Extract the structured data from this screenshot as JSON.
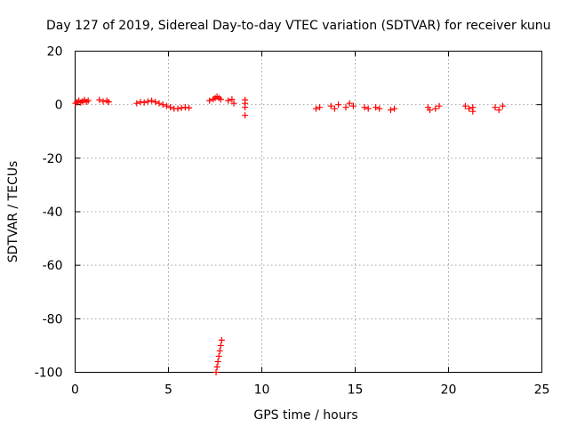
{
  "chart_data": {
    "type": "scatter",
    "title": "Day 127 of 2019, Sidereal Day-to-day VTEC variation (SDTVAR) for receiver kunu",
    "xlabel": "GPS time / hours",
    "ylabel": "SDTVAR / TECUs",
    "xlim": [
      0,
      25
    ],
    "ylim": [
      -100,
      20
    ],
    "xticks": [
      0,
      5,
      10,
      15,
      20,
      25
    ],
    "xtick_labels": [
      "0",
      "5",
      "10",
      "15",
      "20",
      "25"
    ],
    "yticks": [
      20,
      0,
      -20,
      -40,
      -60,
      -80,
      -100
    ],
    "ytick_labels": [
      "20",
      "0",
      "-20",
      "-40",
      "-60",
      "-80",
      "-100"
    ],
    "grid": true,
    "marker": "+",
    "color": "#ff0000",
    "series": [
      {
        "name": "SDTVAR",
        "points": [
          [
            0.02,
            0.5
          ],
          [
            0.1,
            1.0
          ],
          [
            0.2,
            1.5
          ],
          [
            0.3,
            0.8
          ],
          [
            0.4,
            1.2
          ],
          [
            0.5,
            1.8
          ],
          [
            0.6,
            1.0
          ],
          [
            0.7,
            1.5
          ],
          [
            1.3,
            1.8
          ],
          [
            1.5,
            1.2
          ],
          [
            1.7,
            1.5
          ],
          [
            1.8,
            1.0
          ],
          [
            3.3,
            0.5
          ],
          [
            3.5,
            1.0
          ],
          [
            3.7,
            0.8
          ],
          [
            3.9,
            1.2
          ],
          [
            4.1,
            1.5
          ],
          [
            4.3,
            1.0
          ],
          [
            4.5,
            0.5
          ],
          [
            4.7,
            0.0
          ],
          [
            4.9,
            -0.5
          ],
          [
            5.1,
            -1.0
          ],
          [
            5.3,
            -1.5
          ],
          [
            5.5,
            -1.5
          ],
          [
            5.7,
            -1.2
          ],
          [
            5.9,
            -1.0
          ],
          [
            6.1,
            -1.2
          ],
          [
            7.2,
            1.5
          ],
          [
            7.4,
            2.0
          ],
          [
            7.5,
            2.5
          ],
          [
            7.6,
            3.0
          ],
          [
            7.7,
            2.5
          ],
          [
            7.8,
            2.0
          ],
          [
            8.2,
            1.5
          ],
          [
            8.4,
            2.0
          ],
          [
            8.5,
            0.5
          ],
          [
            9.1,
            -4.0
          ],
          [
            9.1,
            -1.0
          ],
          [
            9.1,
            0.5
          ],
          [
            9.1,
            1.8
          ],
          [
            7.85,
            -88
          ],
          [
            7.8,
            -90
          ],
          [
            7.75,
            -92
          ],
          [
            7.7,
            -94
          ],
          [
            7.65,
            -96
          ],
          [
            7.6,
            -98
          ],
          [
            7.55,
            -100
          ],
          [
            12.9,
            -1.5
          ],
          [
            13.1,
            -1.0
          ],
          [
            13.7,
            -0.5
          ],
          [
            13.9,
            -1.5
          ],
          [
            14.1,
            0.0
          ],
          [
            14.5,
            -1.0
          ],
          [
            14.7,
            0.5
          ],
          [
            14.9,
            -0.5
          ],
          [
            15.5,
            -1.0
          ],
          [
            15.7,
            -1.5
          ],
          [
            16.1,
            -1.0
          ],
          [
            16.3,
            -1.5
          ],
          [
            16.9,
            -2.0
          ],
          [
            17.1,
            -1.5
          ],
          [
            18.9,
            -1.0
          ],
          [
            19.0,
            -2.0
          ],
          [
            19.3,
            -1.5
          ],
          [
            19.5,
            -0.5
          ],
          [
            20.9,
            -0.5
          ],
          [
            21.1,
            -1.5
          ],
          [
            21.3,
            -2.5
          ],
          [
            21.3,
            -1.0
          ],
          [
            22.5,
            -1.0
          ],
          [
            22.7,
            -2.0
          ],
          [
            22.9,
            -0.5
          ]
        ]
      }
    ]
  }
}
